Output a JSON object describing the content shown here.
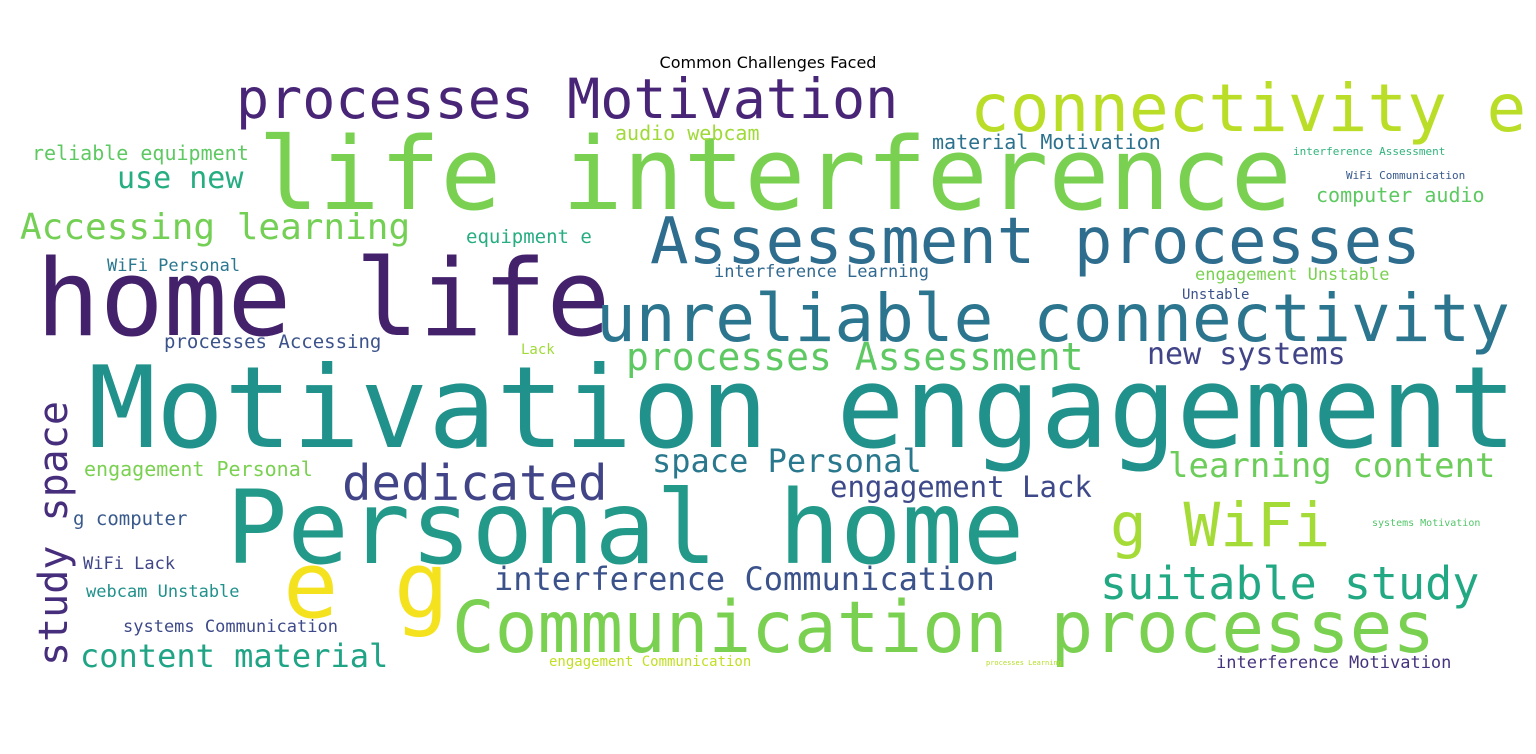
{
  "title": "Common Challenges Faced",
  "palette": {
    "dark_purple": "#44216b",
    "purple": "#482576",
    "indigo": "#3f4a8a",
    "slate_blue": "#35608d",
    "teal_blue": "#2b758e",
    "teal": "#21918c",
    "green_teal": "#27ad81",
    "green": "#5ec962",
    "light_green": "#7ad151",
    "yellow_green": "#b5de2b",
    "yellow": "#f0e51f"
  },
  "words": [
    {
      "text": "Motivation engagement",
      "color": "#21918c"
    },
    {
      "text": "life interference",
      "color": "#7ad151"
    },
    {
      "text": "Personal home",
      "color": "#23998a"
    },
    {
      "text": "home life",
      "color": "#44216b"
    },
    {
      "text": "Communication processes",
      "color": "#7ad151"
    },
    {
      "text": "unreliable connectivity",
      "color": "#2b758e"
    },
    {
      "text": "Assessment processes",
      "color": "#2e6d8e"
    },
    {
      "text": "connectivity e",
      "color": "#bade28"
    },
    {
      "text": "processes Motivation",
      "color": "#482576"
    },
    {
      "text": "e g",
      "color": "#f5e21f"
    },
    {
      "text": "g WiFi",
      "color": "#a5db36"
    },
    {
      "text": "study space",
      "color": "#472e7c"
    },
    {
      "text": "dedicated",
      "color": "#414487"
    },
    {
      "text": "suitable study",
      "color": "#23a884"
    },
    {
      "text": "processes Assessment",
      "color": "#5ec962"
    },
    {
      "text": "interference Communication",
      "color": "#3b528b"
    },
    {
      "text": "learning content",
      "color": "#6ccd5a"
    },
    {
      "text": "space Personal",
      "color": "#2a788e"
    },
    {
      "text": "engagement Lack",
      "color": "#3e4989"
    },
    {
      "text": "Accessing learning",
      "color": "#74d055"
    },
    {
      "text": "content material",
      "color": "#20a486"
    },
    {
      "text": "new systems",
      "color": "#414487"
    },
    {
      "text": "use new",
      "color": "#26ad81"
    },
    {
      "text": "material Motivation",
      "color": "#2c728e"
    },
    {
      "text": "reliable equipment",
      "color": "#5ec962"
    },
    {
      "text": "audio webcam",
      "color": "#a0da39"
    },
    {
      "text": "computer audio",
      "color": "#5ec962"
    },
    {
      "text": "equipment e",
      "color": "#26ad81"
    },
    {
      "text": "engagement Personal",
      "color": "#7ad151"
    },
    {
      "text": "g computer",
      "color": "#38598c"
    },
    {
      "text": "processes Accessing",
      "color": "#3b528b"
    },
    {
      "text": "interference Learning",
      "color": "#31688e"
    },
    {
      "text": "engagement Unstable",
      "color": "#7ad151"
    },
    {
      "text": "WiFi Personal",
      "color": "#2a788e"
    },
    {
      "text": "WiFi Lack",
      "color": "#404688"
    },
    {
      "text": "webcam Unstable",
      "color": "#21918c"
    },
    {
      "text": "systems Communication",
      "color": "#3e4a89"
    },
    {
      "text": "interference Motivation",
      "color": "#46337e"
    },
    {
      "text": "Unstable",
      "color": "#3b528b"
    },
    {
      "text": "Lack",
      "color": "#a0da39"
    },
    {
      "text": "interference Assessment",
      "color": "#2fb47c"
    },
    {
      "text": "WiFi Communication",
      "color": "#38598c"
    },
    {
      "text": "systems Motivation",
      "color": "#52c569"
    },
    {
      "text": "engagement Communication",
      "color": "#c2df23"
    },
    {
      "text": "processes Learning",
      "color": "#b5de2b"
    }
  ]
}
